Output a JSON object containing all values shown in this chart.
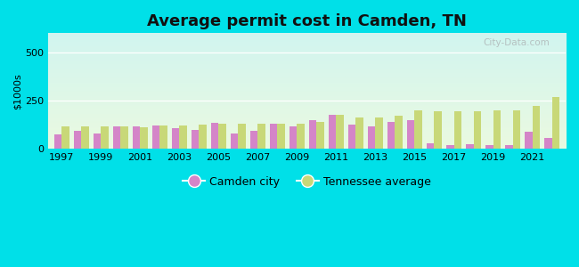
{
  "title": "Average permit cost in Camden, TN",
  "ylabel": "$1000s",
  "ylim": [
    0,
    600
  ],
  "yticks": [
    0,
    250,
    500
  ],
  "outer_bg": "#00e0e8",
  "camden_color": "#d485c8",
  "tn_color": "#c8d878",
  "years": [
    1997,
    1998,
    1999,
    2000,
    2001,
    2002,
    2003,
    2004,
    2005,
    2006,
    2007,
    2008,
    2009,
    2010,
    2011,
    2012,
    2013,
    2014,
    2015,
    2016,
    2017,
    2018,
    2019,
    2020,
    2021,
    2022
  ],
  "camden_values": [
    75,
    95,
    80,
    115,
    115,
    120,
    105,
    100,
    135,
    80,
    95,
    130,
    115,
    150,
    175,
    125,
    115,
    140,
    150,
    30,
    20,
    22,
    18,
    18,
    88,
    58
  ],
  "tn_values": [
    115,
    115,
    115,
    115,
    110,
    120,
    120,
    125,
    130,
    130,
    130,
    130,
    130,
    140,
    175,
    162,
    165,
    172,
    200,
    195,
    195,
    195,
    200,
    198,
    222,
    270
  ]
}
